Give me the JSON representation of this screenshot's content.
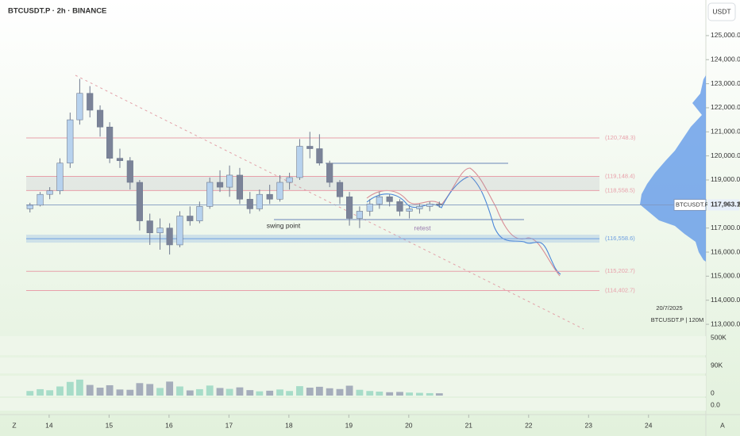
{
  "chart_data": {
    "type": "candlestick",
    "title": "BTCUSDT.P · 2h · BINANCE",
    "currency": "USDT",
    "xlim": [
      13.18,
      24.97
    ],
    "xticks": [
      14,
      15,
      16,
      17,
      18,
      19,
      20,
      21,
      22,
      23,
      24
    ],
    "ylim": [
      112640,
      126480
    ],
    "yticks": [
      {
        "value": 113000,
        "label": "113,000.0"
      },
      {
        "value": 114000,
        "label": "114,000.0"
      },
      {
        "value": 115000,
        "label": "115,000.0"
      },
      {
        "value": 116000,
        "label": "116,000.0"
      },
      {
        "value": 117000,
        "label": "117,000.0"
      },
      {
        "value": 118000,
        "label": "118,000.0"
      },
      {
        "value": 119000,
        "label": "119,000.0"
      },
      {
        "value": 120000,
        "label": "120,000.0"
      },
      {
        "value": 121000,
        "label": "121,000.0"
      },
      {
        "value": 122000,
        "label": "122,000.0"
      },
      {
        "value": 123000,
        "label": "123,000.0"
      },
      {
        "value": 124000,
        "label": "124,000.0"
      },
      {
        "value": 125000,
        "label": "125,000.0"
      }
    ],
    "up_color": "#b7d2ee",
    "down_color": "#7b8398",
    "candles": [
      [
        13.68,
        117800,
        118050,
        117650,
        117950
      ],
      [
        13.85,
        117950,
        118500,
        117900,
        118400
      ],
      [
        14.01,
        118400,
        118700,
        118200,
        118550
      ],
      [
        14.18,
        118550,
        119900,
        118400,
        119700
      ],
      [
        14.35,
        119700,
        121800,
        119500,
        121500
      ],
      [
        14.51,
        121500,
        123200,
        121300,
        122600
      ],
      [
        14.68,
        122600,
        122900,
        121600,
        121900
      ],
      [
        14.85,
        121900,
        122100,
        120800,
        121200
      ],
      [
        15.01,
        121200,
        121400,
        119700,
        119900
      ],
      [
        15.18,
        119900,
        120300,
        119500,
        119800
      ],
      [
        15.35,
        119800,
        119950,
        118600,
        118900
      ],
      [
        15.51,
        118900,
        119000,
        116900,
        117300
      ],
      [
        15.68,
        117300,
        117600,
        116300,
        116800
      ],
      [
        15.85,
        116800,
        117400,
        116100,
        117000
      ],
      [
        16.01,
        117000,
        117200,
        115900,
        116300
      ],
      [
        16.18,
        116300,
        117700,
        116200,
        117500
      ],
      [
        16.35,
        117500,
        117900,
        117100,
        117300
      ],
      [
        16.51,
        117300,
        118100,
        117200,
        117900
      ],
      [
        16.68,
        117900,
        119100,
        117800,
        118900
      ],
      [
        16.85,
        118900,
        119400,
        118500,
        118700
      ],
      [
        17.01,
        118700,
        119600,
        118300,
        119200
      ],
      [
        17.18,
        119200,
        119500,
        118000,
        118200
      ],
      [
        17.35,
        118200,
        118500,
        117600,
        117800
      ],
      [
        17.51,
        117800,
        118600,
        117700,
        118400
      ],
      [
        17.68,
        118400,
        118800,
        118000,
        118200
      ],
      [
        17.85,
        118200,
        119200,
        118100,
        118900
      ],
      [
        18.01,
        118900,
        119300,
        118600,
        119100
      ],
      [
        18.18,
        119100,
        120700,
        119000,
        120400
      ],
      [
        18.35,
        120400,
        121000,
        119900,
        120300
      ],
      [
        18.51,
        120300,
        120900,
        119600,
        119700
      ],
      [
        18.68,
        119700,
        119800,
        118700,
        118900
      ],
      [
        18.85,
        118900,
        119000,
        118000,
        118300
      ],
      [
        19.01,
        118300,
        118500,
        117100,
        117400
      ],
      [
        19.18,
        117400,
        117900,
        117000,
        117700
      ],
      [
        19.35,
        117700,
        118200,
        117500,
        118000
      ],
      [
        19.51,
        118000,
        118500,
        117800,
        118300
      ],
      [
        19.68,
        118300,
        118400,
        117900,
        118100
      ],
      [
        19.85,
        118100,
        118200,
        117500,
        117700
      ],
      [
        20.01,
        117700,
        117900,
        117400,
        117800
      ],
      [
        20.18,
        117800,
        118000,
        117600,
        117900
      ],
      [
        20.35,
        117900,
        118100,
        117700,
        118000
      ],
      [
        20.51,
        118000,
        118100,
        117850,
        117963.1
      ]
    ],
    "levels": [
      {
        "value": 120748.3,
        "label": "(120,748.3)",
        "color": "#e8a0aa"
      },
      {
        "value": 119148.4,
        "label": "(119,148.4)",
        "color": "#e8a0aa"
      },
      {
        "value": 118558.5,
        "label": "(118,558.5)",
        "color": "#e8a0aa"
      },
      {
        "value": 116558.6,
        "label": "(116,558.6)",
        "color": "#6e9fe0"
      },
      {
        "value": 115202.7,
        "label": "(115,202.7)",
        "color": "#e8a0aa"
      },
      {
        "value": 114402.7,
        "label": "(114,402.7)",
        "color": "#e8a0aa"
      }
    ],
    "current_price": {
      "name": "BTCUSDT.P",
      "value": 117963.1,
      "label": "117,963.1"
    },
    "annotations": {
      "swing": "swing point",
      "retest": "retest",
      "date": "20/7/2025",
      "symbol": "BTCUSDT.P | 120M"
    },
    "volume": {
      "ylim": [
        0,
        12000
      ],
      "values": [
        3000,
        4200,
        3500,
        6000,
        9000,
        10500,
        7000,
        5200,
        6800,
        4000,
        3800,
        8200,
        7600,
        5000,
        9200,
        6000,
        3400,
        4200,
        6600,
        5000,
        4400,
        5400,
        3600,
        2800,
        3200,
        4000,
        3000,
        6200,
        5200,
        5800,
        4800,
        4300,
        6500,
        3800,
        3000,
        2600,
        2200,
        2400,
        2000,
        1800,
        1600,
        1500
      ]
    },
    "pane_labels": [
      "500K",
      "90K",
      "0",
      "0.0"
    ],
    "axis_icons": [
      "Z",
      "A"
    ]
  }
}
